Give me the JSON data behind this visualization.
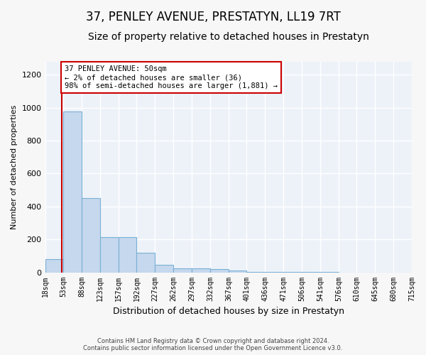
{
  "title1": "37, PENLEY AVENUE, PRESTATYN, LL19 7RT",
  "title2": "Size of property relative to detached houses in Prestatyn",
  "xlabel": "Distribution of detached houses by size in Prestatyn",
  "ylabel": "Number of detached properties",
  "bin_edges": [
    18,
    53,
    88,
    123,
    157,
    192,
    227,
    262,
    297,
    332,
    367,
    401,
    436,
    471,
    506,
    541,
    576,
    610,
    645,
    680,
    715
  ],
  "bar_heights": [
    80,
    975,
    450,
    215,
    215,
    120,
    45,
    25,
    22,
    20,
    10,
    3,
    2,
    1,
    1,
    1,
    0,
    0,
    0,
    0
  ],
  "bar_color": "#c5d8ee",
  "bar_edge_color": "#7aafd4",
  "vline_x": 50,
  "vline_color": "#cc0000",
  "ylim": [
    0,
    1280
  ],
  "yticks": [
    0,
    200,
    400,
    600,
    800,
    1000,
    1200
  ],
  "annotation_text": "37 PENLEY AVENUE: 50sqm\n← 2% of detached houses are smaller (36)\n98% of semi-detached houses are larger (1,881) →",
  "annotation_box_color": "#cc0000",
  "bg_color": "#edf2f9",
  "grid_color": "#ffffff",
  "footer": "Contains HM Land Registry data © Crown copyright and database right 2024.\nContains public sector information licensed under the Open Government Licence v3.0.",
  "fig_bg": "#f7f7f7"
}
